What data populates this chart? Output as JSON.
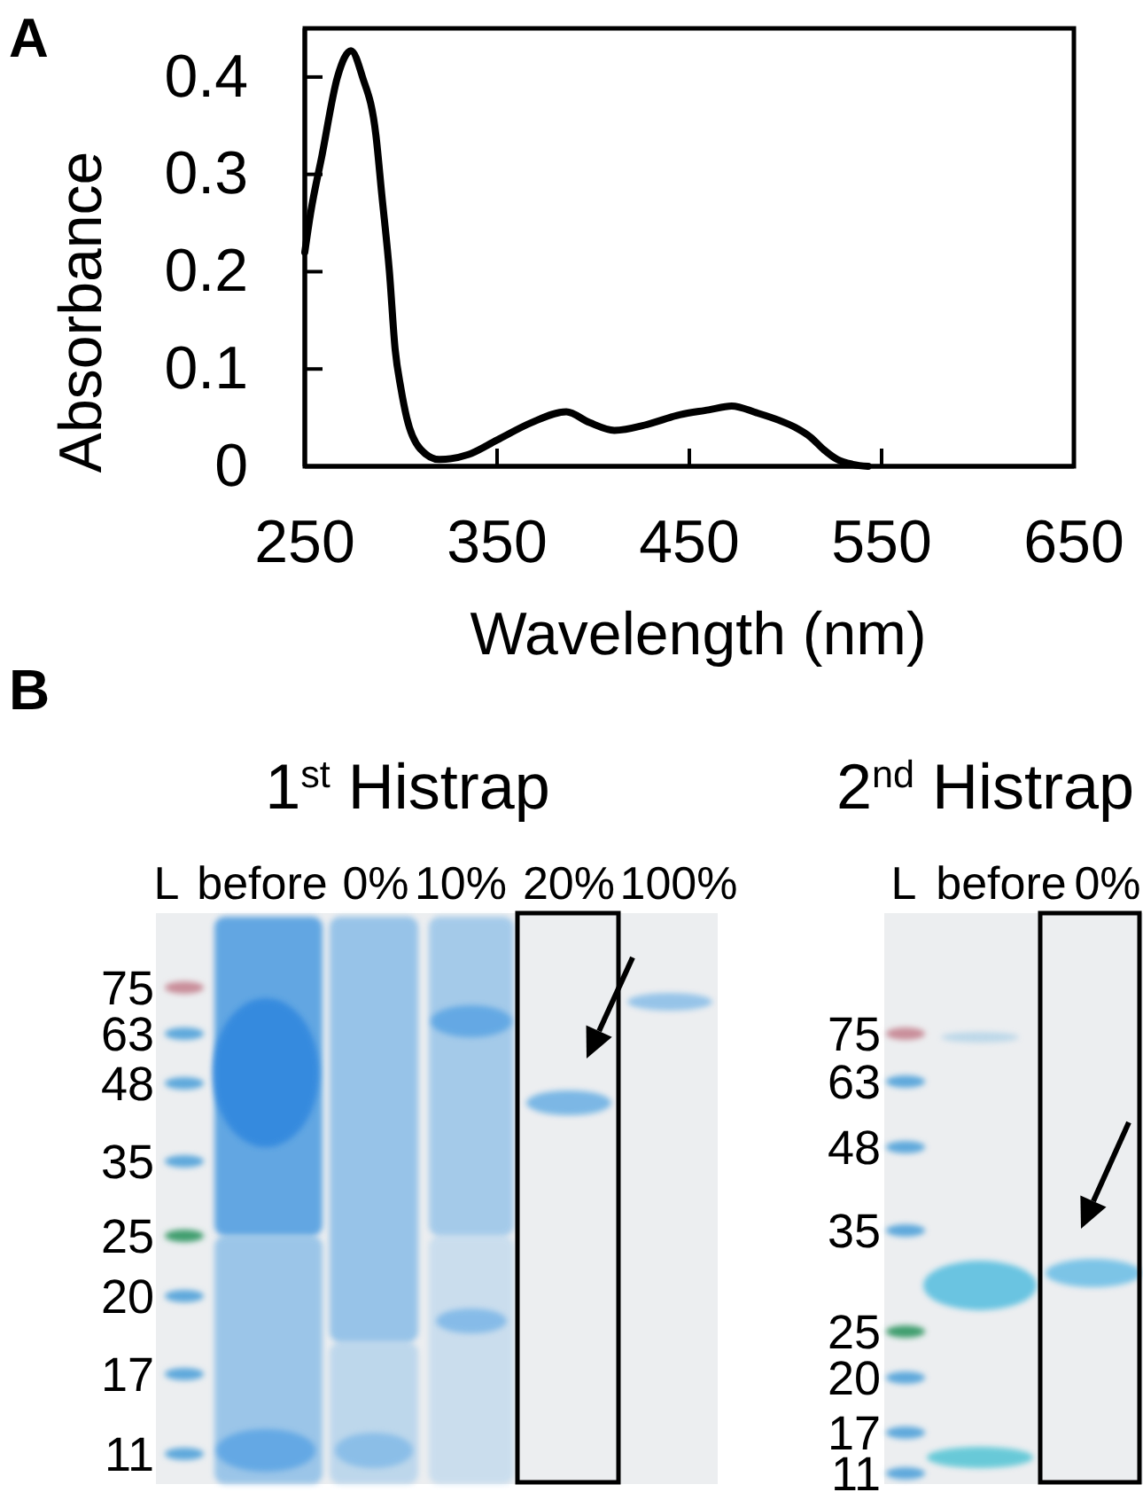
{
  "chart_data": [
    {
      "type": "line",
      "annotations": [
        "A"
      ],
      "xlabel": "Wavelength (nm)",
      "ylabel": "Absorbance",
      "color": "#000000",
      "x": [
        250,
        253,
        259,
        267,
        274,
        280,
        287,
        290,
        294,
        297,
        300,
        303,
        310,
        320,
        335,
        350,
        368,
        386,
        398,
        411,
        428,
        445,
        460,
        472,
        485,
        497,
        505,
        513,
        520,
        527,
        535,
        543
      ],
      "values": [
        0.22,
        0.26,
        0.32,
        0.4,
        0.427,
        0.4,
        0.34,
        0.28,
        0.2,
        0.12,
        0.08,
        0.05,
        0.018,
        0.007,
        0.012,
        0.027,
        0.045,
        0.056,
        0.045,
        0.037,
        0.043,
        0.053,
        0.058,
        0.062,
        0.055,
        0.047,
        0.04,
        0.03,
        0.017,
        0.007,
        0.002,
        0
      ],
      "xlim": [
        250,
        650
      ],
      "ylim": [
        0,
        0.45
      ],
      "xticks": [
        250,
        350,
        450,
        550,
        650
      ],
      "yticks": [
        0,
        0.1,
        0.2,
        0.3,
        0.4
      ]
    },
    {
      "type": "other",
      "title": "1$^{st}$ Histrap",
      "annotations": [
        "B"
      ],
      "categories": [
        "L",
        "before",
        "0%",
        "10%",
        "20%",
        "100%"
      ],
      "y_categories": [
        "75",
        "63",
        "48",
        "35",
        "25",
        "20",
        "17",
        "11"
      ]
    },
    {
      "type": "other",
      "title": "2$^{nd}$ Histrap",
      "categories": [
        "L",
        "before",
        "0%"
      ],
      "y_categories": [
        "75",
        "63",
        "48",
        "35",
        "25",
        "20",
        "17",
        "11"
      ]
    }
  ]
}
